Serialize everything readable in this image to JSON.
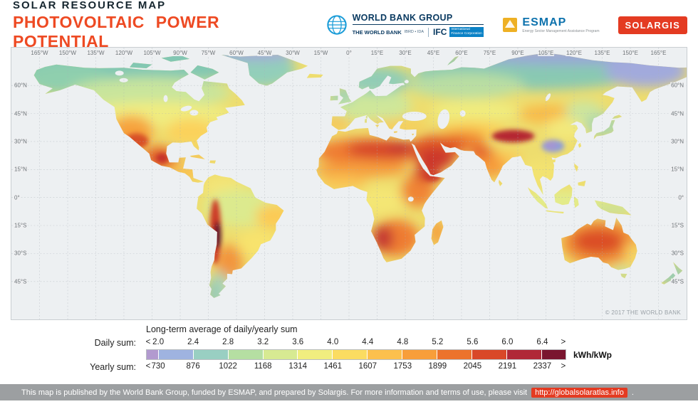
{
  "header": {
    "kicker": "SOLAR RESOURCE MAP",
    "title": "PHOTOVOLTAIC POWER POTENTIAL"
  },
  "logos": {
    "wbg": {
      "title": "WORLD BANK GROUP",
      "sub_left": "THE WORLD BANK",
      "sub_left_small": "IBRD • IDA",
      "ifc": "IFC",
      "ifc_caption": "International Finance Corporation"
    },
    "esmap": {
      "name": "ESMAP",
      "caption": "Energy Sector Management Assistance Program"
    },
    "solargis": {
      "name": "SOLARGIS"
    }
  },
  "map": {
    "copyright": "© 2017 THE WORLD BANK",
    "lon_ticks": [
      "165°W",
      "150°W",
      "135°W",
      "120°W",
      "105°W",
      "90°W",
      "75°W",
      "60°W",
      "45°W",
      "30°W",
      "15°W",
      "0°",
      "15°E",
      "30°E",
      "45°E",
      "60°E",
      "75°E",
      "90°E",
      "105°E",
      "120°E",
      "135°E",
      "150°E",
      "165°E"
    ],
    "lat_ticks": [
      "60°N",
      "45°N",
      "30°N",
      "15°N",
      "0°",
      "15°S",
      "30°S",
      "45°S"
    ]
  },
  "legend": {
    "title": "Long-term average of daily/yearly sum",
    "daily_label": "Daily sum:",
    "yearly_label": "Yearly sum:",
    "unit": "kWh/kWp",
    "less_symbol": "<",
    "greater_symbol": ">",
    "daily_ticks": [
      "2.0",
      "2.4",
      "2.8",
      "3.2",
      "3.6",
      "4.0",
      "4.4",
      "4.8",
      "5.2",
      "5.6",
      "6.0",
      "6.4"
    ],
    "yearly_ticks": [
      "730",
      "876",
      "1022",
      "1168",
      "1314",
      "1461",
      "1607",
      "1753",
      "1899",
      "2045",
      "2191",
      "2337"
    ],
    "colors": [
      "#b29acf",
      "#9fb3e0",
      "#99cfc2",
      "#b5dfa2",
      "#d7ea92",
      "#f1ee7f",
      "#fbdc61",
      "#fcc04d",
      "#f89e3a",
      "#ec732c",
      "#d94828",
      "#b02837",
      "#7a152f"
    ]
  },
  "footer": {
    "text": "This map is published by the World Bank Group, funded by ESMAP, and prepared by Solargis. For more information and terms of use, please visit",
    "link": "http://globalsolaratlas.info",
    "suffix": "."
  },
  "colors": {
    "title_accent": "#ee4a23",
    "solargis_red": "#e43b22",
    "footer_link_bg": "#e43b22",
    "footer_bg": "#9c9fa1",
    "wbg_blue": "#0a3a61",
    "esmap_blue": "#0d72ad",
    "esmap_gold": "#eeb024",
    "ocean": "#edf0f2"
  }
}
